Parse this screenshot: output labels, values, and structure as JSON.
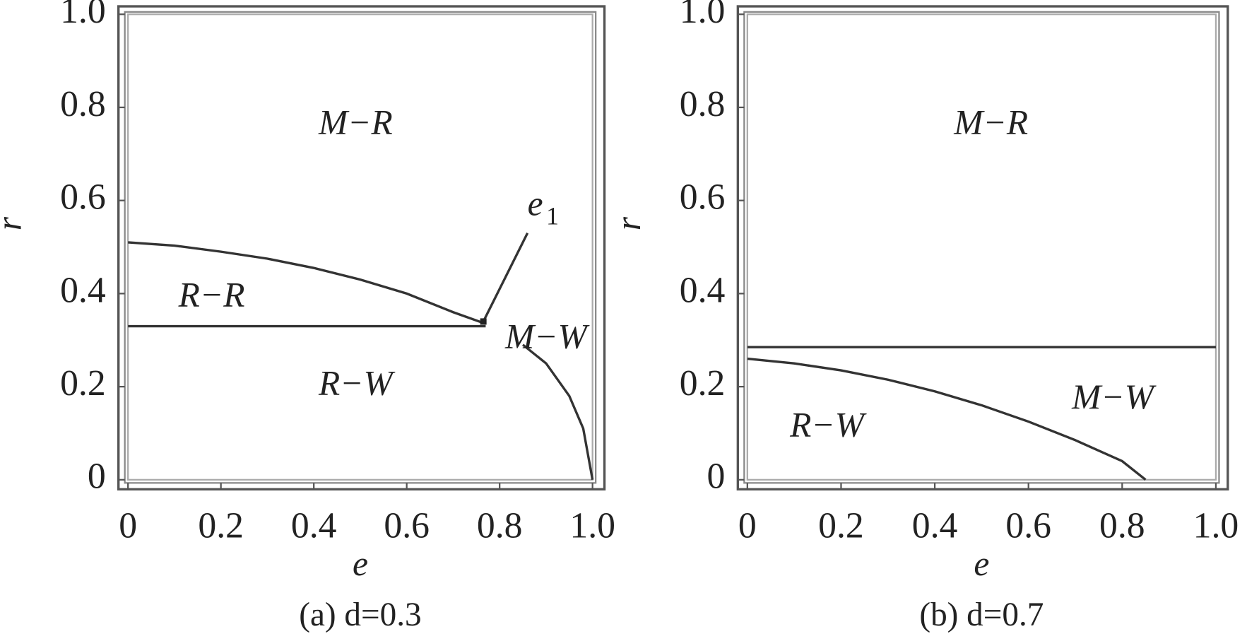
{
  "chart_data": [
    {
      "type": "line",
      "title": "(a) d=0.3",
      "x_label": "e",
      "y_label": "r",
      "xlim": [
        0,
        1
      ],
      "ylim": [
        0,
        1
      ],
      "xticks": [
        0,
        0.2,
        0.4,
        0.6,
        0.8,
        {
          "value": 1,
          "label": "1.0"
        }
      ],
      "yticks": [
        0,
        0.2,
        0.4,
        0.6,
        0.8,
        {
          "value": 1,
          "label": "1.0"
        }
      ],
      "region_labels": [
        "M−R",
        "R−R",
        "R−W",
        "M−W"
      ],
      "pointer_label": {
        "text": "e",
        "subscript": "1"
      },
      "series": [
        {
          "color": "#333333",
          "x": [
            0,
            0.1,
            0.2,
            0.3,
            0.4,
            0.5,
            0.6,
            0.7,
            0.77
          ],
          "values": [
            0.51,
            0.503,
            0.49,
            0.475,
            0.455,
            0.43,
            0.4,
            0.36,
            0.335
          ]
        },
        {
          "color": "#333333",
          "x": [
            0,
            0.77
          ],
          "values": [
            0.33,
            0.33
          ]
        },
        {
          "color": "#333333",
          "x": [
            0.85,
            0.9,
            0.95,
            0.98,
            1.0
          ],
          "values": [
            0.29,
            0.25,
            0.18,
            0.11,
            0
          ]
        }
      ]
    },
    {
      "type": "line",
      "title": "(b) d=0.7",
      "x_label": "e",
      "y_label": "r",
      "xlim": [
        0,
        1
      ],
      "ylim": [
        0,
        1
      ],
      "xticks": [
        0,
        0.2,
        0.4,
        0.6,
        0.8,
        {
          "value": 1,
          "label": "1.0"
        }
      ],
      "yticks": [
        0,
        0.2,
        0.4,
        0.6,
        0.8,
        {
          "value": 1,
          "label": "1.0"
        }
      ],
      "region_labels": [
        "M−R",
        "R−W",
        "M−W"
      ],
      "series": [
        {
          "color": "#333333",
          "x": [
            0,
            1
          ],
          "values": [
            0.285,
            0.285
          ]
        },
        {
          "color": "#333333",
          "x": [
            0,
            0.1,
            0.2,
            0.3,
            0.4,
            0.5,
            0.6,
            0.7,
            0.8,
            0.85
          ],
          "values": [
            0.26,
            0.25,
            0.235,
            0.215,
            0.19,
            0.16,
            0.125,
            0.085,
            0.04,
            0
          ]
        }
      ]
    }
  ]
}
